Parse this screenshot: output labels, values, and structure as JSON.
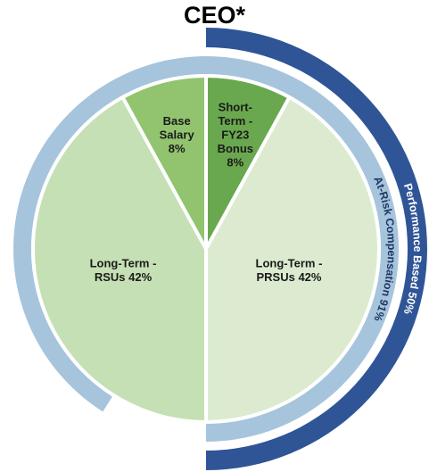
{
  "chart_data": {
    "type": "pie",
    "title": "CEO*",
    "slices": [
      {
        "label": "Short-Term - FY23 Bonus 8%",
        "lines": [
          "Short-",
          "Term -",
          "FY23",
          "Bonus",
          "8%"
        ],
        "value": 8,
        "color": "#6aa84f"
      },
      {
        "label": "Long-Term - PRSUs 42%",
        "lines": [
          "Long-Term -",
          "PRSUs 42%"
        ],
        "value": 42,
        "color": "#dcebd0"
      },
      {
        "label": "Long-Term - RSUs 42%",
        "lines": [
          "Long-Term -",
          "RSUs 42%"
        ],
        "value": 42,
        "color": "#c5e0b4"
      },
      {
        "label": "Base Salary 8%",
        "lines": [
          "Base",
          "Salary",
          "8%"
        ],
        "value": 8,
        "color": "#92c46f"
      }
    ],
    "rings": [
      {
        "label": "At-Risk Compensation 91%",
        "value": 91,
        "color": "#a7c4dd",
        "text_color": "#1f3864"
      },
      {
        "label": "Performance Based 50%",
        "value": 50,
        "color": "#2f5597",
        "text_color": "#ffffff"
      }
    ]
  }
}
